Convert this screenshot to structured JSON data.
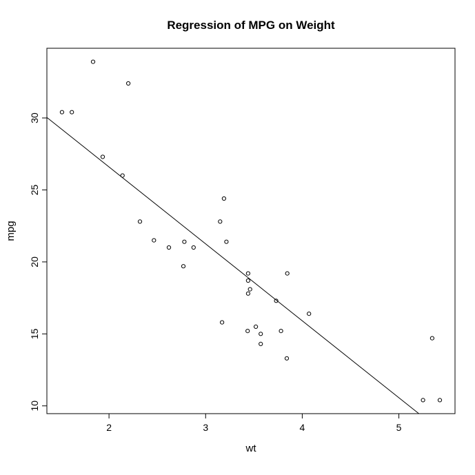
{
  "chart_data": {
    "type": "scatter",
    "title": "Regression of MPG on Weight",
    "xlabel": "wt",
    "ylabel": "mpg",
    "xlim": [
      1.357,
      5.581
    ],
    "ylim": [
      9.46,
      34.84
    ],
    "x_ticks": [
      2,
      3,
      4,
      5
    ],
    "y_ticks": [
      10,
      15,
      20,
      25,
      30
    ],
    "grid": false,
    "legend": "none",
    "marker": "open-circle",
    "marker_color": "#000000",
    "line_color": "#000000",
    "background_color": "#ffffff",
    "points": [
      [
        2.62,
        21.0
      ],
      [
        2.875,
        21.0
      ],
      [
        2.32,
        22.8
      ],
      [
        3.215,
        21.4
      ],
      [
        3.44,
        18.7
      ],
      [
        3.46,
        18.1
      ],
      [
        3.57,
        14.3
      ],
      [
        3.19,
        24.4
      ],
      [
        3.15,
        22.8
      ],
      [
        3.44,
        19.2
      ],
      [
        3.44,
        17.8
      ],
      [
        4.07,
        16.4
      ],
      [
        3.73,
        17.3
      ],
      [
        3.78,
        15.2
      ],
      [
        5.25,
        10.4
      ],
      [
        5.424,
        10.4
      ],
      [
        5.345,
        14.7
      ],
      [
        2.2,
        32.4
      ],
      [
        1.615,
        30.4
      ],
      [
        1.835,
        33.9
      ],
      [
        2.465,
        21.5
      ],
      [
        3.52,
        15.5
      ],
      [
        3.435,
        15.2
      ],
      [
        3.84,
        13.3
      ],
      [
        3.845,
        19.2
      ],
      [
        1.935,
        27.3
      ],
      [
        2.14,
        26.0
      ],
      [
        1.513,
        30.4
      ],
      [
        3.17,
        15.8
      ],
      [
        2.77,
        19.7
      ],
      [
        3.57,
        15.0
      ],
      [
        2.78,
        21.4
      ]
    ],
    "regression_line": {
      "intercept": 37.285,
      "slope": -5.344
    }
  }
}
